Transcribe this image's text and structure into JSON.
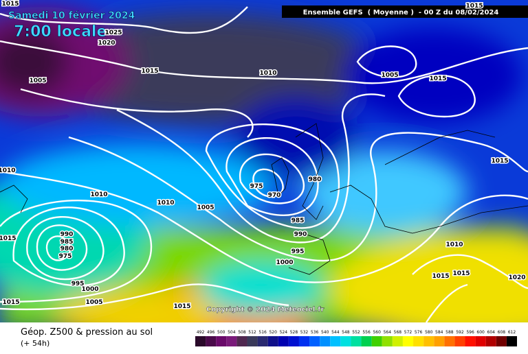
{
  "header": {
    "date": "Samedi 10 février 2024",
    "time": "7:00 locale",
    "model": "Ensemble GEFS  ( Moyenne )  - 00 Z du 08/02/2024"
  },
  "isobar_labels": [
    "1015",
    "1025",
    "1020",
    "1005",
    "1015",
    "1010",
    "1005",
    "1015",
    "1015",
    "1010",
    "1015",
    "975",
    "970",
    "980",
    "1010",
    "1010",
    "1005",
    "985",
    "990",
    "995",
    "1000",
    "990",
    "985",
    "980",
    "975",
    "1015",
    "995",
    "1000",
    "1005",
    "1015",
    "1015",
    "1010",
    "1015",
    "1015",
    "1020"
  ],
  "copyright": "Copyright © 2024 Meteociel.fr",
  "footer": {
    "title": "Géop. Z500 & pression au sol",
    "lead": "(+ 54h)"
  },
  "scale": {
    "values": [
      492,
      496,
      500,
      504,
      508,
      512,
      516,
      520,
      524,
      528,
      532,
      536,
      540,
      544,
      548,
      552,
      556,
      560,
      564,
      568,
      572,
      576,
      580,
      584,
      588,
      592,
      596,
      600,
      604,
      608,
      612
    ],
    "colors": [
      "#2a0a2a",
      "#4a0a4a",
      "#6a0a6a",
      "#7a1a7a",
      "#502850",
      "#3a3a5a",
      "#2a2a70",
      "#10108a",
      "#0000b0",
      "#0010d0",
      "#0030f0",
      "#0060ff",
      "#0090ff",
      "#00c0ff",
      "#00e0e0",
      "#00e0a0",
      "#00d050",
      "#40d000",
      "#90e000",
      "#d0f000",
      "#ffff00",
      "#ffe000",
      "#ffc000",
      "#ffa000",
      "#ff7000",
      "#ff4000",
      "#ff1000",
      "#e00000",
      "#b00000",
      "#700000",
      "#000000"
    ]
  }
}
